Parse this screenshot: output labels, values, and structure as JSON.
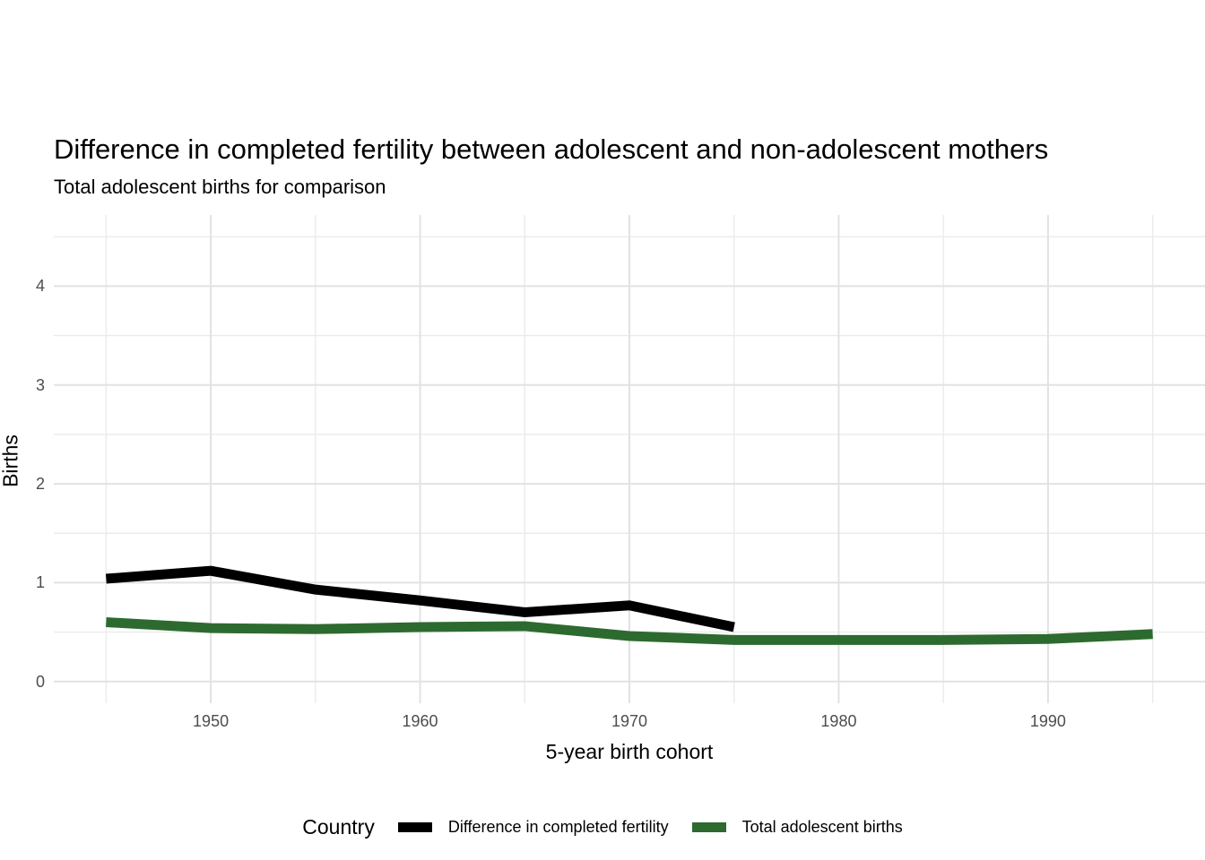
{
  "page": {
    "background_color": "#ffffff",
    "text_color": "#000000",
    "tick_label_color": "#4d4d4d",
    "grid_major_color": "#e2e2e2",
    "grid_minor_color": "#ebebeb"
  },
  "chart_data": {
    "type": "line",
    "title": "Difference in completed fertility between adolescent and non-adolescent mothers",
    "subtitle": "Total adolescent births for comparison",
    "xlabel": "5-year birth cohort",
    "ylabel": "Births",
    "xlim": [
      1942.5,
      1997.5
    ],
    "ylim": [
      -0.22,
      4.72
    ],
    "x_major_ticks": [
      1950,
      1960,
      1970,
      1980,
      1990
    ],
    "x_minor_gridlines": [
      1945,
      1955,
      1965,
      1975,
      1985,
      1995
    ],
    "y_major_ticks": [
      0,
      1,
      2,
      3,
      4
    ],
    "y_minor_gridlines": [
      0.5,
      1.5,
      2.5,
      3.5,
      4.5
    ],
    "grid": "on",
    "legend": {
      "title": "Country",
      "position": "bottom"
    },
    "series": [
      {
        "name": "Difference in completed fertility",
        "color": "#000000",
        "x": [
          1945,
          1950,
          1955,
          1960,
          1965,
          1970,
          1975
        ],
        "values": [
          1.04,
          1.12,
          0.93,
          0.82,
          0.7,
          0.77,
          0.55
        ]
      },
      {
        "name": "Total adolescent births",
        "color": "#2d6a2f",
        "x": [
          1945,
          1950,
          1955,
          1960,
          1965,
          1970,
          1975,
          1980,
          1985,
          1990,
          1995
        ],
        "values": [
          0.6,
          0.54,
          0.53,
          0.55,
          0.56,
          0.46,
          0.42,
          0.42,
          0.42,
          0.43,
          0.48
        ]
      }
    ]
  }
}
